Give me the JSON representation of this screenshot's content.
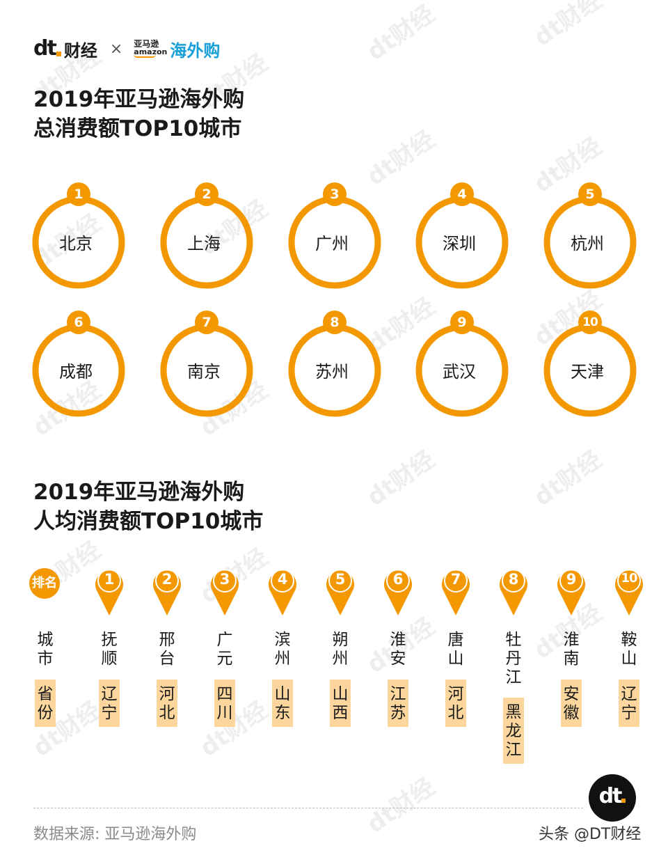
{
  "header": {
    "dt_mark": "dt",
    "dt_name": "财经",
    "times": "×",
    "amazon_cn": "亚马逊",
    "amazon_en": "amazon",
    "amazon_hwg": "海外购"
  },
  "section1": {
    "title_line1": "2019年亚马逊海外购",
    "title_line2": "总消费额TOP10城市",
    "cities": [
      {
        "rank": "1",
        "city": "北京"
      },
      {
        "rank": "2",
        "city": "上海"
      },
      {
        "rank": "3",
        "city": "广州"
      },
      {
        "rank": "4",
        "city": "深圳"
      },
      {
        "rank": "5",
        "city": "杭州"
      },
      {
        "rank": "6",
        "city": "成都"
      },
      {
        "rank": "7",
        "city": "南京"
      },
      {
        "rank": "8",
        "city": "苏州"
      },
      {
        "rank": "9",
        "city": "武汉"
      },
      {
        "rank": "10",
        "city": "天津"
      }
    ]
  },
  "section2": {
    "title_line1": "2019年亚马逊海外购",
    "title_line2": "人均消费额TOP10城市",
    "rank_header": "排名",
    "city_header": "城市",
    "province_header": "省份",
    "rows": [
      {
        "rank": "1",
        "city": "抚顺",
        "province": "辽宁"
      },
      {
        "rank": "2",
        "city": "邢台",
        "province": "河北"
      },
      {
        "rank": "3",
        "city": "广元",
        "province": "四川"
      },
      {
        "rank": "4",
        "city": "滨州",
        "province": "山东"
      },
      {
        "rank": "5",
        "city": "朔州",
        "province": "山西"
      },
      {
        "rank": "6",
        "city": "淮安",
        "province": "江苏"
      },
      {
        "rank": "7",
        "city": "唐山",
        "province": "河北"
      },
      {
        "rank": "8",
        "city": "牡丹江",
        "province": "黑龙江"
      },
      {
        "rank": "9",
        "city": "淮南",
        "province": "安徽"
      },
      {
        "rank": "10",
        "city": "鞍山",
        "province": "辽宁"
      }
    ]
  },
  "footer": {
    "source": "数据来源: 亚马逊海外购",
    "badge": "dt",
    "toutiao": "头条 @DT财经"
  },
  "watermark": "dt财经",
  "colors": {
    "accent": "#f39800",
    "box": "#fcd69c",
    "link": "#1aa0d8"
  }
}
